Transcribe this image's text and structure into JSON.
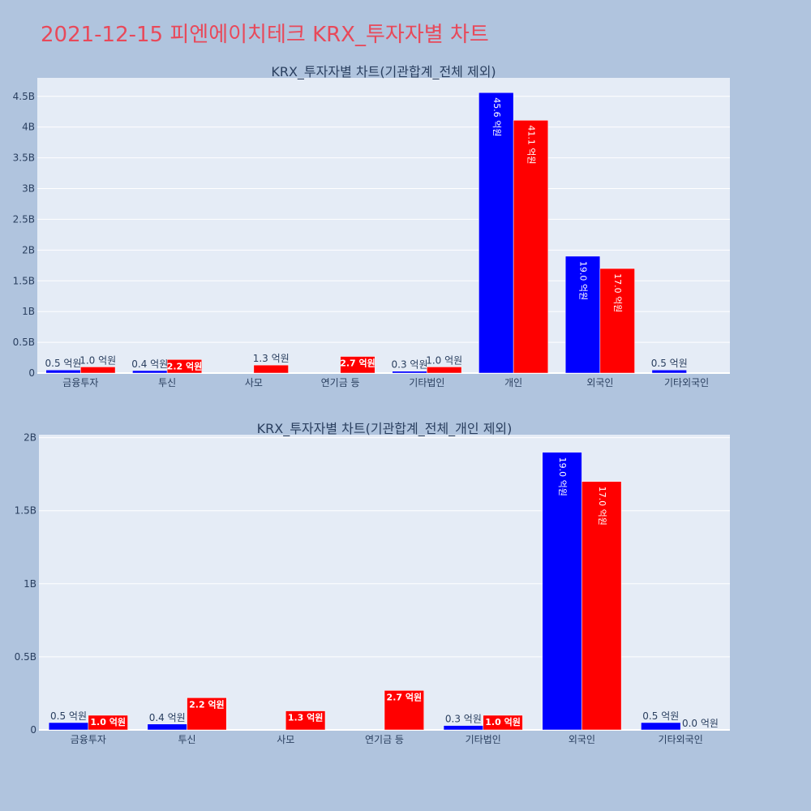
{
  "page": {
    "title": "2021-12-15 피엔에이치테크 KRX_투자자별 차트"
  },
  "chart_data": [
    {
      "type": "bar",
      "title": "KRX_투자자별 차트(기관합계_전체 제외)",
      "categories": [
        "금융투자",
        "투신",
        "사모",
        "연기금 등",
        "기타법인",
        "개인",
        "외국인",
        "기타외국인"
      ],
      "series": [
        {
          "color": "#0000ff",
          "values": [
            50000000,
            40000000,
            null,
            null,
            30000000,
            4560000000,
            1900000000,
            50000000
          ],
          "labels": [
            "0.5 억원",
            "0.4 억원",
            "",
            "",
            "0.3 억원",
            "45.6 억원",
            "19.0 억원",
            "0.5 억원"
          ]
        },
        {
          "color": "#ff0000",
          "values": [
            100000000,
            220000000,
            130000000,
            270000000,
            100000000,
            4110000000,
            1700000000,
            null
          ],
          "labels": [
            "1.0 억원",
            "2.2 억원",
            "1.3 억원",
            "2.7 억원",
            "1.0 억원",
            "41.1 억원",
            "17.0 억원",
            ""
          ]
        }
      ],
      "ylim": [
        0,
        4800000000
      ],
      "yticks": [
        0,
        500000000,
        1000000000,
        1500000000,
        2000000000,
        2500000000,
        3000000000,
        3500000000,
        4000000000,
        4500000000
      ],
      "yticklabels": [
        "0",
        "0.5B",
        "1B",
        "1.5B",
        "2B",
        "2.5B",
        "3B",
        "3.5B",
        "4B",
        "4.5B"
      ],
      "grid": true
    },
    {
      "type": "bar",
      "title": "KRX_투자자별 차트(기관합계_전체_개인 제외)",
      "categories": [
        "금융투자",
        "투신",
        "사모",
        "연기금 등",
        "기타법인",
        "외국인",
        "기타외국인"
      ],
      "series": [
        {
          "color": "#0000ff",
          "values": [
            50000000,
            40000000,
            null,
            null,
            30000000,
            1900000000,
            50000000
          ],
          "labels": [
            "0.5 억원",
            "0.4 억원",
            "",
            "",
            "0.3 억원",
            "19.0 억원",
            "0.5 억원"
          ]
        },
        {
          "color": "#ff0000",
          "values": [
            100000000,
            220000000,
            130000000,
            270000000,
            100000000,
            1700000000,
            0
          ],
          "labels": [
            "1.0 억원",
            "2.2 억원",
            "1.3 억원",
            "2.7 억원",
            "1.0 억원",
            "17.0 억원",
            "0.0 억원"
          ]
        }
      ],
      "ylim": [
        0,
        2020000000
      ],
      "yticks": [
        0,
        500000000,
        1000000000,
        1500000000,
        2000000000
      ],
      "yticklabels": [
        "0",
        "0.5B",
        "1B",
        "1.5B",
        "2B"
      ],
      "grid": true
    }
  ]
}
